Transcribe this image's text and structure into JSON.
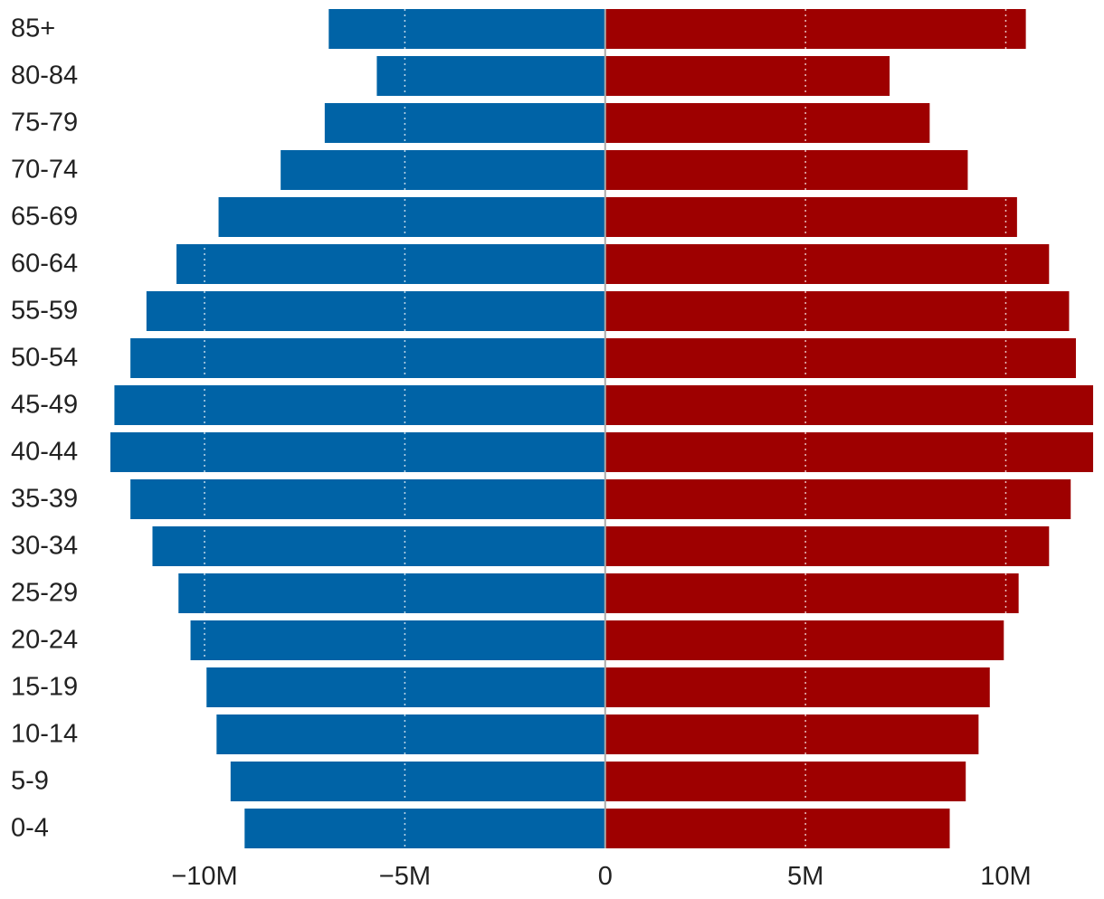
{
  "chart_data": {
    "type": "bar",
    "orientation": "horizontal",
    "layout": "population-pyramid",
    "categories": [
      "85+",
      "80-84",
      "75-79",
      "70-74",
      "65-69",
      "60-64",
      "55-59",
      "50-54",
      "45-49",
      "40-44",
      "35-39",
      "30-34",
      "25-29",
      "20-24",
      "15-19",
      "10-14",
      "5-9",
      "0-4"
    ],
    "series": [
      {
        "color": "#0063a6",
        "values": [
          -6.9,
          -5.7,
          -7.0,
          -8.1,
          -9.65,
          -10.7,
          -11.45,
          -11.85,
          -12.25,
          -12.35,
          -11.85,
          -11.3,
          -10.65,
          -10.35,
          -9.95,
          -9.7,
          -9.35,
          -9.0
        ]
      },
      {
        "color": "#9e0000",
        "values": [
          10.5,
          7.1,
          8.1,
          9.05,
          10.28,
          11.08,
          11.58,
          11.75,
          12.18,
          12.18,
          11.62,
          11.08,
          10.32,
          9.95,
          9.6,
          9.32,
          9.0,
          8.6
        ]
      }
    ],
    "x_ticks": [
      {
        "value": -10,
        "label": "−10M"
      },
      {
        "value": -5,
        "label": "−5M"
      },
      {
        "value": 0,
        "label": "0"
      },
      {
        "value": 5,
        "label": "5M"
      },
      {
        "value": 10,
        "label": "10M"
      }
    ],
    "xlim": [
      -12.35,
      12.18
    ],
    "unit": "millions",
    "title": "",
    "xlabel": "",
    "ylabel": "",
    "grid": "vertical dotted",
    "legend": "none"
  }
}
